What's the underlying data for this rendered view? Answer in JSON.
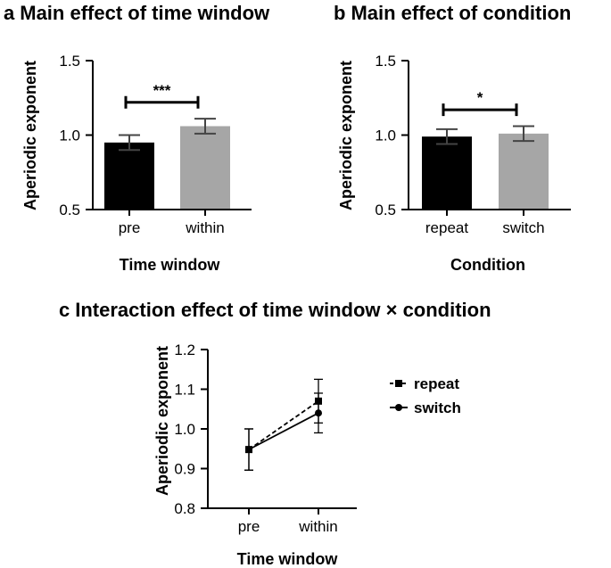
{
  "chart_data": [
    {
      "type": "bar",
      "panel_letter": "a",
      "title": "Main effect of time window",
      "xlabel": "Time window",
      "ylabel": "Aperiodic exponent",
      "categories": [
        "pre",
        "within"
      ],
      "values": [
        0.95,
        1.06
      ],
      "error": [
        0.05,
        0.05
      ],
      "colors": [
        "#000000",
        "#a6a6a6"
      ],
      "ylim": [
        0.5,
        1.5
      ],
      "yticks": [
        "0.5",
        "1.0",
        "1.5"
      ],
      "significance": {
        "label": "***",
        "y": 1.22
      }
    },
    {
      "type": "bar",
      "panel_letter": "b",
      "title": "Main effect of condition",
      "xlabel": "Condition",
      "ylabel": "Aperiodic exponent",
      "categories": [
        "repeat",
        "switch"
      ],
      "values": [
        0.99,
        1.01
      ],
      "error": [
        0.05,
        0.05
      ],
      "colors": [
        "#000000",
        "#a6a6a6"
      ],
      "ylim": [
        0.5,
        1.5
      ],
      "yticks": [
        "0.5",
        "1.0",
        "1.5"
      ],
      "significance": {
        "label": "*",
        "y": 1.17
      }
    },
    {
      "type": "line",
      "panel_letter": "c",
      "title": "Interaction effect of time window × condition",
      "xlabel": "Time window",
      "ylabel": "Aperiodic exponent",
      "categories": [
        "pre",
        "within"
      ],
      "ylim": [
        0.8,
        1.2
      ],
      "yticks": [
        "0.8",
        "0.9",
        "1.0",
        "1.1",
        "1.2"
      ],
      "series": [
        {
          "name": "repeat",
          "values": [
            0.948,
            1.07
          ],
          "error": [
            0.052,
            0.055
          ],
          "marker": "square",
          "dash": true
        },
        {
          "name": "switch",
          "values": [
            0.948,
            1.04
          ],
          "error": [
            0.052,
            0.05
          ],
          "marker": "circle",
          "dash": false
        }
      ]
    }
  ]
}
